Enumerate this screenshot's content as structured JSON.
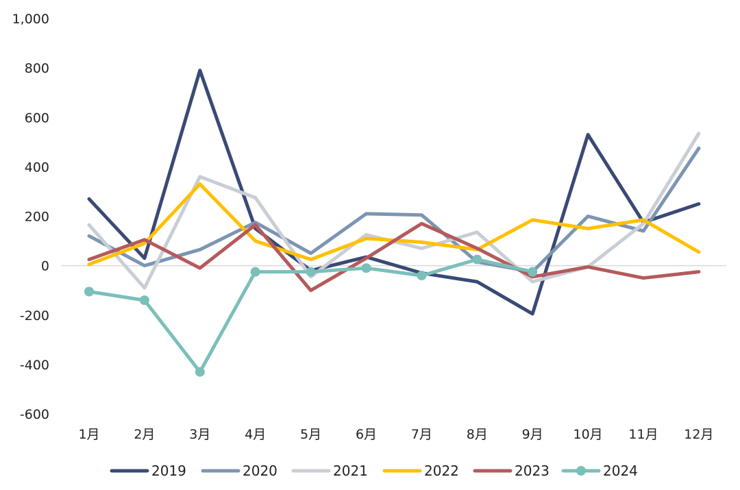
{
  "chart_data": {
    "type": "line",
    "title": "",
    "xlabel": "",
    "ylabel": "",
    "ylim": [
      -600,
      1000
    ],
    "yticks": [
      -600,
      -400,
      -200,
      0,
      200,
      400,
      600,
      800,
      1000
    ],
    "ytick_labels": [
      "-600",
      "-400",
      "-200",
      "0",
      "200",
      "400",
      "600",
      "800",
      "1,000"
    ],
    "categories": [
      "1月",
      "2月",
      "3月",
      "4月",
      "5月",
      "6月",
      "7月",
      "8月",
      "9月",
      "10月",
      "11月",
      "12月"
    ],
    "grid": false,
    "zero_line": true,
    "legend_position": "bottom",
    "series": [
      {
        "name": "2019",
        "color": "#3a4a75",
        "markers": false,
        "values": [
          270,
          30,
          790,
          150,
          -20,
          35,
          -30,
          -65,
          -195,
          530,
          175,
          250
        ]
      },
      {
        "name": "2020",
        "color": "#7c95b2",
        "markers": false,
        "values": [
          120,
          0,
          65,
          175,
          50,
          210,
          205,
          15,
          -25,
          200,
          140,
          475
        ]
      },
      {
        "name": "2021",
        "color": "#c9ced6",
        "markers": false,
        "values": [
          165,
          -90,
          360,
          275,
          -45,
          125,
          70,
          135,
          -65,
          -5,
          170,
          535
        ]
      },
      {
        "name": "2022",
        "color": "#ffc000",
        "markers": false,
        "values": [
          5,
          90,
          330,
          100,
          25,
          110,
          95,
          65,
          185,
          150,
          185,
          55
        ]
      },
      {
        "name": "2023",
        "color": "#b55a5c",
        "markers": false,
        "values": [
          25,
          105,
          -10,
          165,
          -100,
          30,
          170,
          70,
          -45,
          -5,
          -50,
          -25
        ]
      },
      {
        "name": "2024",
        "color": "#7bbfba",
        "markers": true,
        "values": [
          -105,
          -140,
          -430,
          -25,
          -25,
          -10,
          -40,
          25,
          -25,
          null,
          null,
          null
        ]
      }
    ]
  }
}
